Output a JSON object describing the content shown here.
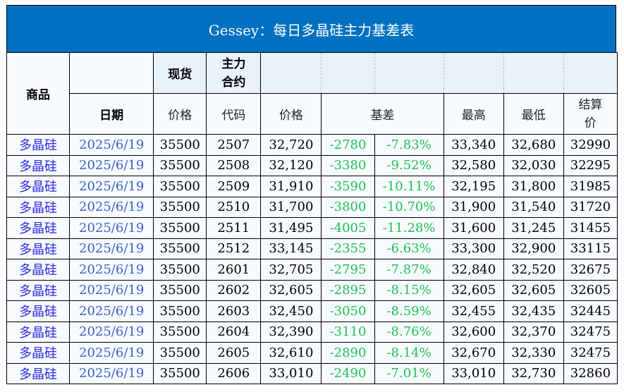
{
  "title": "Gessey：每日多晶硅主力基差表",
  "header": {
    "product": "商品",
    "spot": "现货",
    "main_contract": "主力\n合约",
    "date": "日期",
    "spot_price": "价格",
    "code": "代码",
    "price": "价格",
    "basis": "基差",
    "high": "最高",
    "low": "最低",
    "settle": "结算\n价"
  },
  "colors": {
    "title_bg": "#0070c0",
    "product": "#2a2ae0",
    "date": "#3a5fc8",
    "basis": "#1fbf50"
  },
  "rows": [
    [
      "多晶硅",
      "2025/6/19",
      "35500",
      "2507",
      "32,720",
      "-2780",
      "-7.83%",
      "33,340",
      "32,680",
      "32990"
    ],
    [
      "多晶硅",
      "2025/6/19",
      "35500",
      "2508",
      "32,120",
      "-3380",
      "-9.52%",
      "32,580",
      "32,030",
      "32295"
    ],
    [
      "多晶硅",
      "2025/6/19",
      "35500",
      "2509",
      "31,910",
      "-3590",
      "-10.11%",
      "32,195",
      "31,800",
      "31985"
    ],
    [
      "多晶硅",
      "2025/6/19",
      "35500",
      "2510",
      "31,700",
      "-3800",
      "-10.70%",
      "31,900",
      "31,540",
      "31720"
    ],
    [
      "多晶硅",
      "2025/6/19",
      "35500",
      "2511",
      "31,495",
      "-4005",
      "-11.28%",
      "31,600",
      "31,245",
      "31455"
    ],
    [
      "多晶硅",
      "2025/6/19",
      "35500",
      "2512",
      "33,145",
      "-2355",
      "-6.63%",
      "33,300",
      "32,900",
      "33115"
    ],
    [
      "多晶硅",
      "2025/6/19",
      "35500",
      "2601",
      "32,705",
      "-2795",
      "-7.87%",
      "32,840",
      "32,520",
      "32675"
    ],
    [
      "多晶硅",
      "2025/6/19",
      "35500",
      "2602",
      "32,605",
      "-2895",
      "-8.15%",
      "32,605",
      "32,605",
      "32605"
    ],
    [
      "多晶硅",
      "2025/6/19",
      "35500",
      "2603",
      "32,450",
      "-3050",
      "-8.59%",
      "32,455",
      "32,435",
      "32445"
    ],
    [
      "多晶硅",
      "2025/6/19",
      "35500",
      "2604",
      "32,390",
      "-3110",
      "-8.76%",
      "32,600",
      "32,370",
      "32475"
    ],
    [
      "多晶硅",
      "2025/6/19",
      "35500",
      "2605",
      "32,610",
      "-2890",
      "-8.14%",
      "32,670",
      "32,330",
      "32475"
    ],
    [
      "多晶硅",
      "2025/6/19",
      "35500",
      "2606",
      "33,010",
      "-2490",
      "-7.01%",
      "33,010",
      "32,730",
      "32860"
    ]
  ]
}
